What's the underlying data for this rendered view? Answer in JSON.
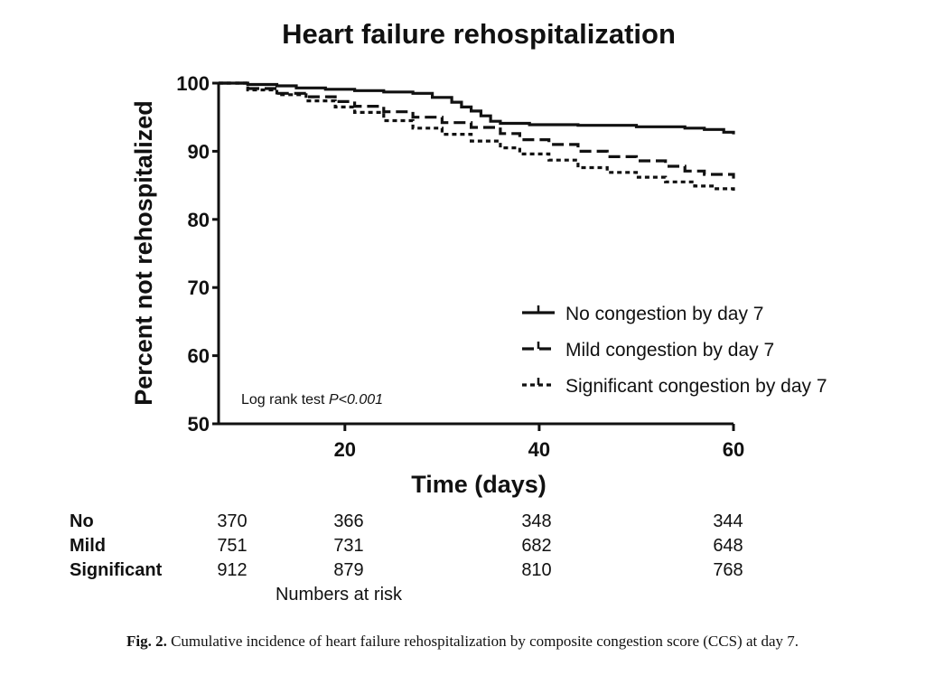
{
  "chart_data": {
    "type": "line",
    "title": "Heart failure rehospitalization",
    "xlabel": "Time (days)",
    "ylabel": "Percent not rehospitalized",
    "xlim": [
      7,
      60
    ],
    "ylim": [
      50,
      100
    ],
    "x_ticks": [
      20,
      40,
      60
    ],
    "y_ticks": [
      50,
      60,
      70,
      80,
      90,
      100
    ],
    "legend_position": "bottom-right",
    "grid": false,
    "series": [
      {
        "name": "No congestion by day 7",
        "style": "solid",
        "points": [
          [
            7,
            100
          ],
          [
            10,
            99.8
          ],
          [
            13,
            99.6
          ],
          [
            15,
            99.3
          ],
          [
            18,
            99.1
          ],
          [
            21,
            98.9
          ],
          [
            24,
            98.7
          ],
          [
            27,
            98.5
          ],
          [
            29,
            97.9
          ],
          [
            31,
            97.2
          ],
          [
            32,
            96.5
          ],
          [
            33,
            95.9
          ],
          [
            34,
            95.2
          ],
          [
            35,
            94.4
          ],
          [
            36,
            94.1
          ],
          [
            39,
            93.9
          ],
          [
            44,
            93.8
          ],
          [
            50,
            93.6
          ],
          [
            55,
            93.4
          ],
          [
            57,
            93.2
          ],
          [
            59,
            92.8
          ],
          [
            60,
            92.5
          ]
        ]
      },
      {
        "name": "Mild congestion by day 7",
        "style": "dashed",
        "points": [
          [
            7,
            100
          ],
          [
            10,
            99.2
          ],
          [
            13,
            98.5
          ],
          [
            16,
            98.0
          ],
          [
            19,
            97.3
          ],
          [
            21,
            96.6
          ],
          [
            24,
            95.8
          ],
          [
            27,
            95.0
          ],
          [
            30,
            94.2
          ],
          [
            33,
            93.5
          ],
          [
            36,
            92.6
          ],
          [
            38,
            91.7
          ],
          [
            41,
            91.0
          ],
          [
            44,
            90.0
          ],
          [
            47,
            89.2
          ],
          [
            50,
            88.6
          ],
          [
            53,
            87.8
          ],
          [
            55,
            87.1
          ],
          [
            57,
            86.6
          ],
          [
            60,
            86.0
          ]
        ]
      },
      {
        "name": "Significant congestion by day 7",
        "style": "dotted",
        "points": [
          [
            7,
            100
          ],
          [
            10,
            99.0
          ],
          [
            13,
            98.3
          ],
          [
            16,
            97.4
          ],
          [
            19,
            96.5
          ],
          [
            21,
            95.7
          ],
          [
            24,
            94.5
          ],
          [
            27,
            93.4
          ],
          [
            30,
            92.5
          ],
          [
            33,
            91.5
          ],
          [
            36,
            90.5
          ],
          [
            38,
            89.6
          ],
          [
            41,
            88.7
          ],
          [
            44,
            87.6
          ],
          [
            47,
            86.9
          ],
          [
            50,
            86.2
          ],
          [
            53,
            85.5
          ],
          [
            56,
            84.9
          ],
          [
            58,
            84.5
          ],
          [
            60,
            84.0
          ]
        ]
      }
    ],
    "annotation": {
      "prefix": "Log rank test ",
      "italic": "P<0.001"
    }
  },
  "risk_table": {
    "title": "Numbers at risk",
    "times": [
      7,
      20,
      40,
      60
    ],
    "rows": [
      {
        "label": "No",
        "values": [
          "370",
          "366",
          "348",
          "344"
        ]
      },
      {
        "label": "Mild",
        "values": [
          "751",
          "731",
          "682",
          "648"
        ]
      },
      {
        "label": "Significant",
        "values": [
          "912",
          "879",
          "810",
          "768"
        ]
      }
    ]
  },
  "caption": {
    "label": "Fig. 2.",
    "text": " Cumulative incidence of heart failure rehospitalization by composite congestion score (CCS) at day 7."
  }
}
